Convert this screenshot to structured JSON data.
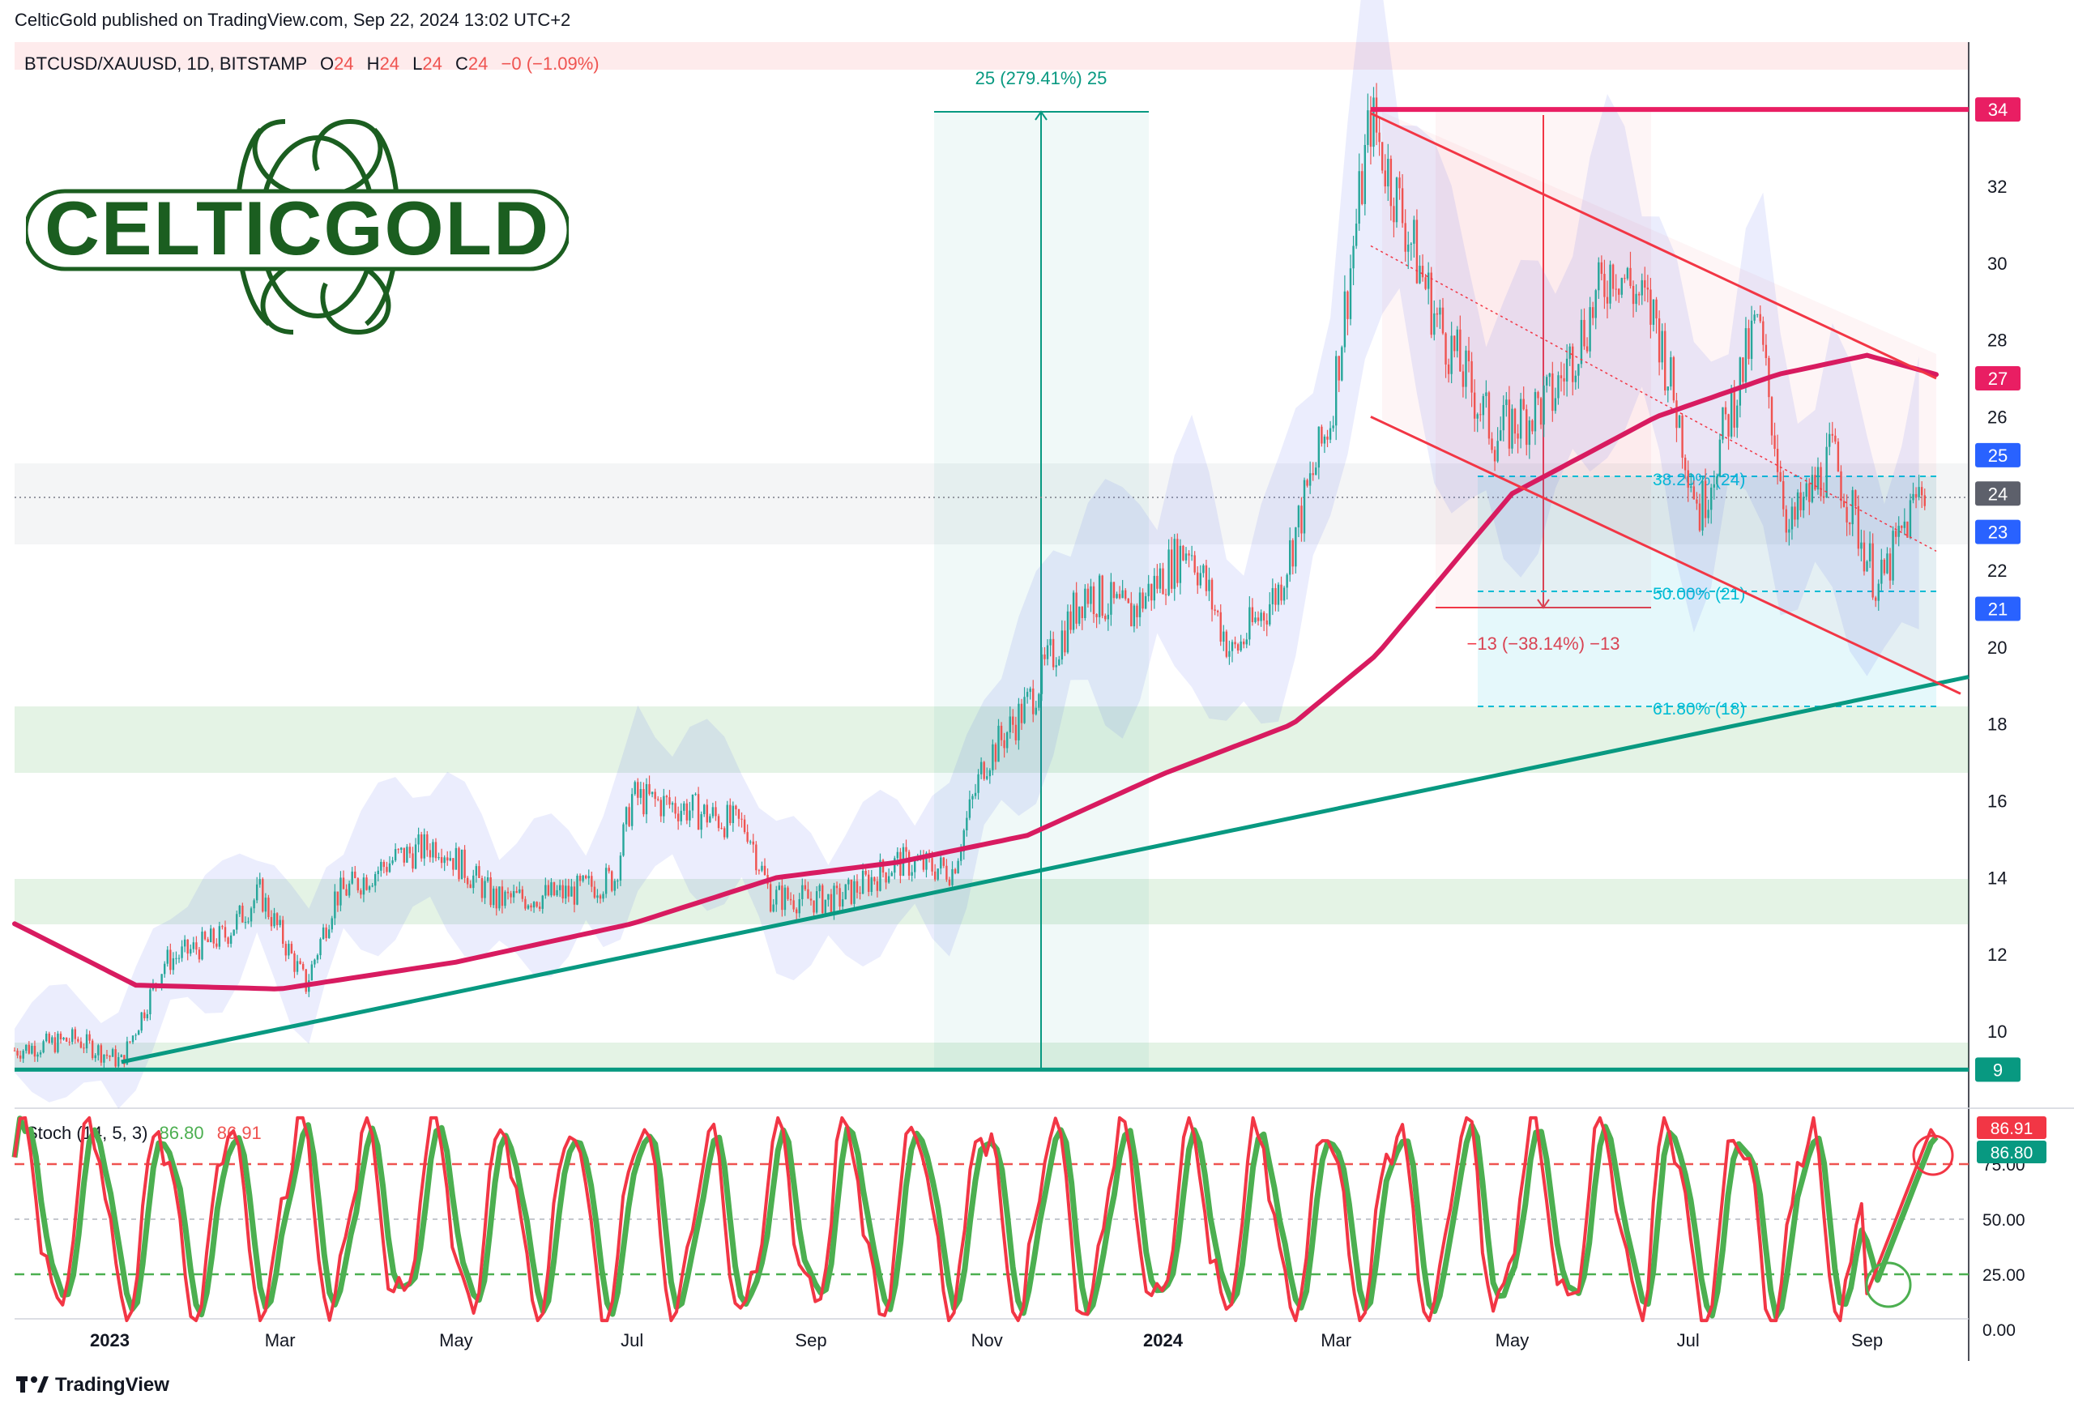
{
  "header": {
    "published": "CelticGold published on TradingView.com, Sep 22, 2024 13:02 UTC+2"
  },
  "symbol": {
    "name": "BTCUSD/XAUUSD, 1D, BITSTAMP",
    "o_label": "O",
    "o_val": "24",
    "h_label": "H",
    "h_val": "24",
    "l_label": "L",
    "l_val": "24",
    "c_label": "C",
    "c_val": "24",
    "change": "−0 (−1.09%)"
  },
  "logo": {
    "text": "CELTICGOLD"
  },
  "measure_up": {
    "label": "25 (279.41%) 25"
  },
  "measure_down": {
    "label": "−13 (−38.14%) −13"
  },
  "fib": {
    "l382": "38.20% (24)",
    "l500": "50.00% (21)",
    "l618": "61.80% (18)"
  },
  "price_axis": {
    "ticks": [
      "32",
      "30",
      "28",
      "26",
      "22",
      "20",
      "18",
      "16",
      "14",
      "12",
      "10"
    ],
    "badges": [
      {
        "label": "34",
        "color": "#e91e63"
      },
      {
        "label": "27",
        "color": "#e91e63"
      },
      {
        "label": "25",
        "color": "#2962ff"
      },
      {
        "label": "24",
        "color": "#5d606b"
      },
      {
        "label": "23",
        "color": "#2962ff"
      },
      {
        "label": "21",
        "color": "#2962ff"
      },
      {
        "label": "9",
        "color": "#089981"
      }
    ]
  },
  "stoch": {
    "label": "Stoch (14, 5, 3)",
    "k_val": "86.80",
    "d_val": "86.91",
    "axis": [
      "75.00",
      "50.00",
      "25.00",
      "0.00"
    ],
    "badge_d": "86.91",
    "badge_k": "86.80"
  },
  "time_axis": [
    "2023",
    "Mar",
    "May",
    "Jul",
    "Sep",
    "Nov",
    "2024",
    "Mar",
    "May",
    "Jul",
    "Sep"
  ],
  "footer": {
    "brand": "TradingView"
  },
  "colors": {
    "ma": "#d81b60",
    "trend": "#089981",
    "up": "#26a69a",
    "down": "#ef5350",
    "channel": "#f23645",
    "fib": "#00bcd4"
  },
  "chart_data": {
    "type": "candlestick",
    "symbol": "BTCUSD/XAUUSD",
    "timeframe": "1D",
    "ylim": [
      8.5,
      36
    ],
    "close_path": [
      [
        "2022-11-29",
        9.5
      ],
      [
        "2022-12-20",
        9.8
      ],
      [
        "2023-01-05",
        9.2
      ],
      [
        "2023-01-20",
        11.8
      ],
      [
        "2023-02-10",
        12.5
      ],
      [
        "2023-02-22",
        13.6
      ],
      [
        "2023-03-10",
        11.2
      ],
      [
        "2023-03-20",
        13.5
      ],
      [
        "2023-04-10",
        14.5
      ],
      [
        "2023-04-25",
        14.9
      ],
      [
        "2023-05-15",
        13.4
      ],
      [
        "2023-06-10",
        13.6
      ],
      [
        "2023-06-25",
        14.0
      ],
      [
        "2023-07-01",
        16.1
      ],
      [
        "2023-07-20",
        15.8
      ],
      [
        "2023-08-10",
        15.3
      ],
      [
        "2023-08-18",
        13.5
      ],
      [
        "2023-09-10",
        13.4
      ],
      [
        "2023-10-01",
        14.4
      ],
      [
        "2023-10-20",
        14.2
      ],
      [
        "2023-10-31",
        17.0
      ],
      [
        "2023-11-15",
        18.5
      ],
      [
        "2023-12-05",
        21.5
      ],
      [
        "2023-12-20",
        20.8
      ],
      [
        "2024-01-10",
        22.7
      ],
      [
        "2024-01-25",
        19.8
      ],
      [
        "2024-02-10",
        21.5
      ],
      [
        "2024-02-28",
        26.0
      ],
      [
        "2024-03-13",
        33.8
      ],
      [
        "2024-03-25",
        31.0
      ],
      [
        "2024-04-05",
        28.5
      ],
      [
        "2024-04-25",
        25.5
      ],
      [
        "2024-05-15",
        26.5
      ],
      [
        "2024-06-05",
        30.0
      ],
      [
        "2024-06-20",
        28.5
      ],
      [
        "2024-07-05",
        23.5
      ],
      [
        "2024-07-25",
        28.5
      ],
      [
        "2024-08-05",
        23.0
      ],
      [
        "2024-08-20",
        25.0
      ],
      [
        "2024-09-05",
        21.5
      ],
      [
        "2024-09-20",
        24.2
      ]
    ],
    "ma_200": [
      [
        "2022-11-29",
        12.8
      ],
      [
        "2023-01-10",
        11.2
      ],
      [
        "2023-03-01",
        11.1
      ],
      [
        "2023-05-01",
        11.8
      ],
      [
        "2023-07-01",
        12.8
      ],
      [
        "2023-08-20",
        14.0
      ],
      [
        "2023-10-01",
        14.4
      ],
      [
        "2023-11-15",
        15.1
      ],
      [
        "2024-01-01",
        16.7
      ],
      [
        "2024-02-15",
        18.0
      ],
      [
        "2024-03-15",
        19.8
      ],
      [
        "2024-05-01",
        24.0
      ],
      [
        "2024-06-20",
        26.0
      ],
      [
        "2024-08-01",
        27.1
      ],
      [
        "2024-09-01",
        27.6
      ],
      [
        "2024-09-25",
        27.1
      ]
    ],
    "trendline_support": [
      [
        "2023-01-05",
        9.2
      ],
      [
        "2024-09-25",
        19.1
      ]
    ],
    "horizontal_levels": [
      9,
      34
    ],
    "channel_upper": [
      [
        "2024-03-13",
        33.9
      ],
      [
        "2024-09-25",
        27.0
      ]
    ],
    "channel_lower": [
      [
        "2024-03-13",
        26.0
      ],
      [
        "2024-09-25",
        19.0
      ]
    ],
    "fib_levels": [
      {
        "level": "38.20%",
        "value": 24
      },
      {
        "level": "50.00%",
        "value": 21
      },
      {
        "level": "61.80%",
        "value": 18
      }
    ],
    "stochastic": {
      "params": [
        14,
        5,
        3
      ],
      "k": 86.8,
      "d": 86.91,
      "upper_band": 80,
      "lower_band": 20
    }
  }
}
